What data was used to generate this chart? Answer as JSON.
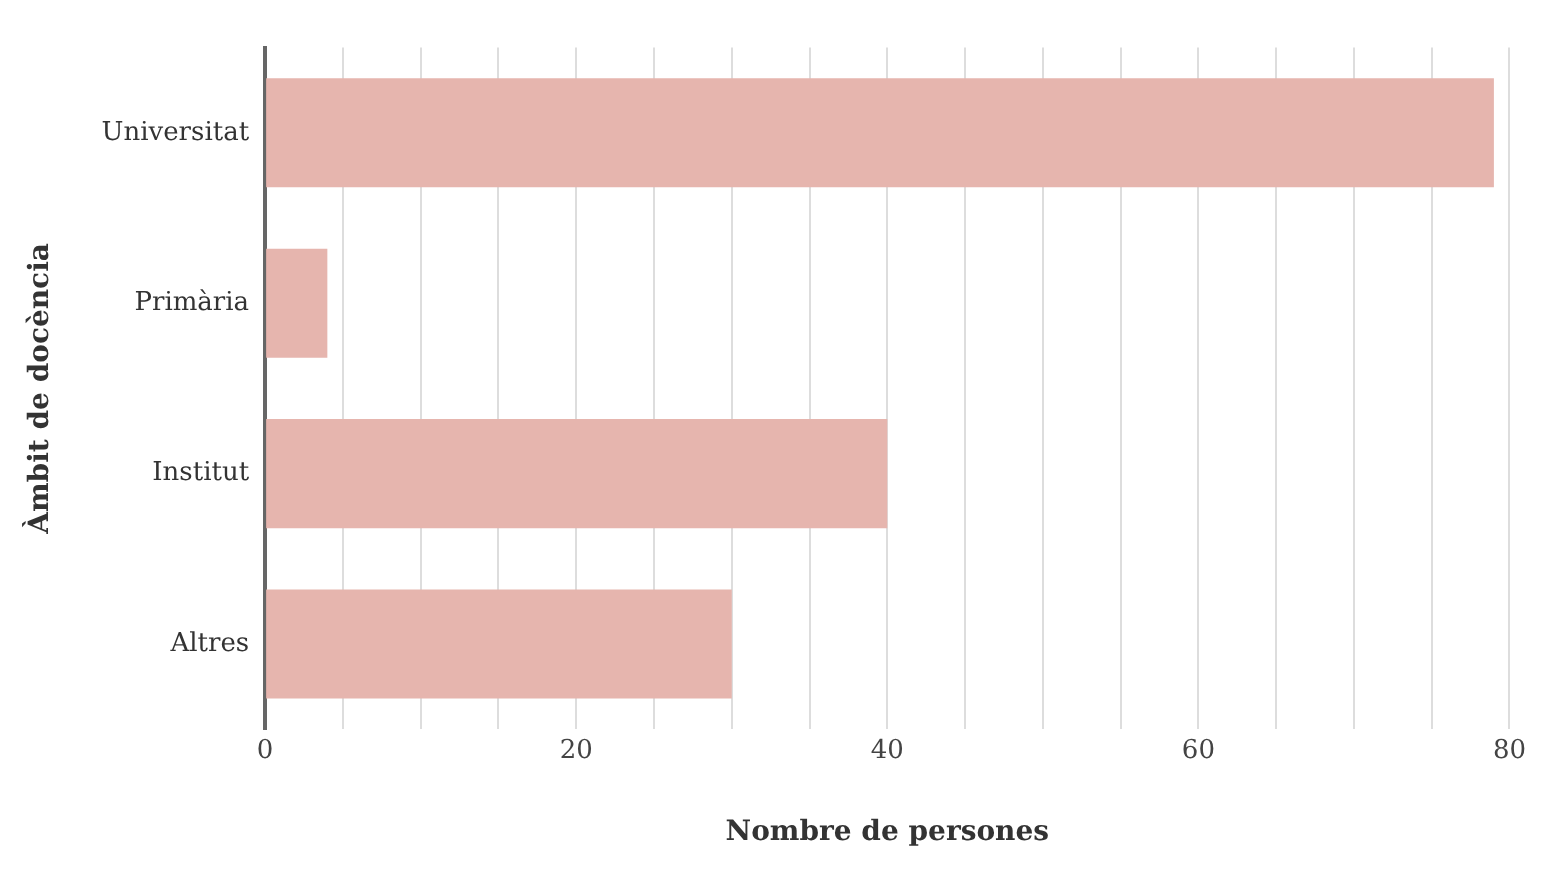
{
  "chart_data": {
    "type": "bar",
    "orientation": "horizontal",
    "xlabel": "Nombre de persones",
    "ylabel": "Àmbit de docència",
    "categories": [
      "Universitat",
      "Primària",
      "Institut",
      "Altres"
    ],
    "values": [
      79,
      4,
      40,
      30
    ],
    "color": "#e6b5ae",
    "xlim": [
      0,
      80
    ],
    "xticks": [
      0,
      {
        "value": 5,
        "label": null
      },
      {
        "value": 10,
        "label": null
      },
      {
        "value": 15,
        "label": null
      },
      20,
      {
        "value": 25,
        "label": null
      },
      {
        "value": 30,
        "label": null
      },
      {
        "value": 35,
        "label": null
      },
      40,
      {
        "value": 45,
        "label": null
      },
      {
        "value": 50,
        "label": null
      },
      {
        "value": 55,
        "label": null
      },
      60,
      {
        "value": 65,
        "label": null
      },
      {
        "value": 70,
        "label": null
      },
      {
        "value": 75,
        "label": null
      },
      80
    ],
    "grid": "x",
    "legend": false
  }
}
